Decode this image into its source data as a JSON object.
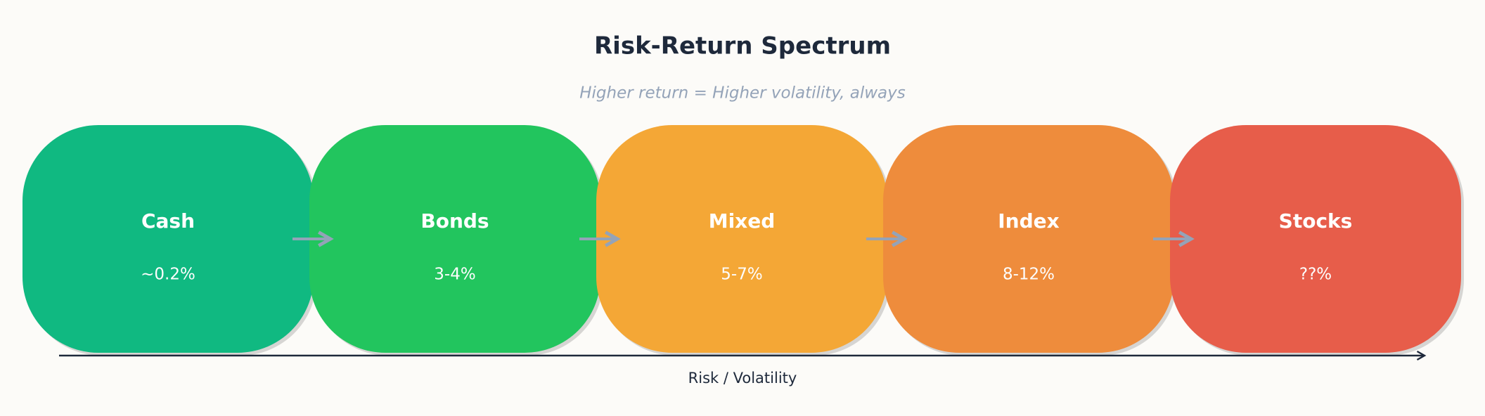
{
  "title": "Risk-Return Spectrum",
  "subtitle": "Higher return = Higher volatility, always",
  "nodes": [
    {
      "label": "Cash",
      "value": "~0.2%",
      "color": "#10b981"
    },
    {
      "label": "Bonds",
      "value": "3-4%",
      "color": "#22c55e"
    },
    {
      "label": "Mixed",
      "value": "5-7%",
      "color": "#f4a736"
    },
    {
      "label": "Index",
      "value": "8-12%",
      "color": "#ee8c3c"
    },
    {
      "label": "Stocks",
      "value": "??%",
      "color": "#e75d4a"
    }
  ],
  "axis_label": "Risk / Volatility"
}
